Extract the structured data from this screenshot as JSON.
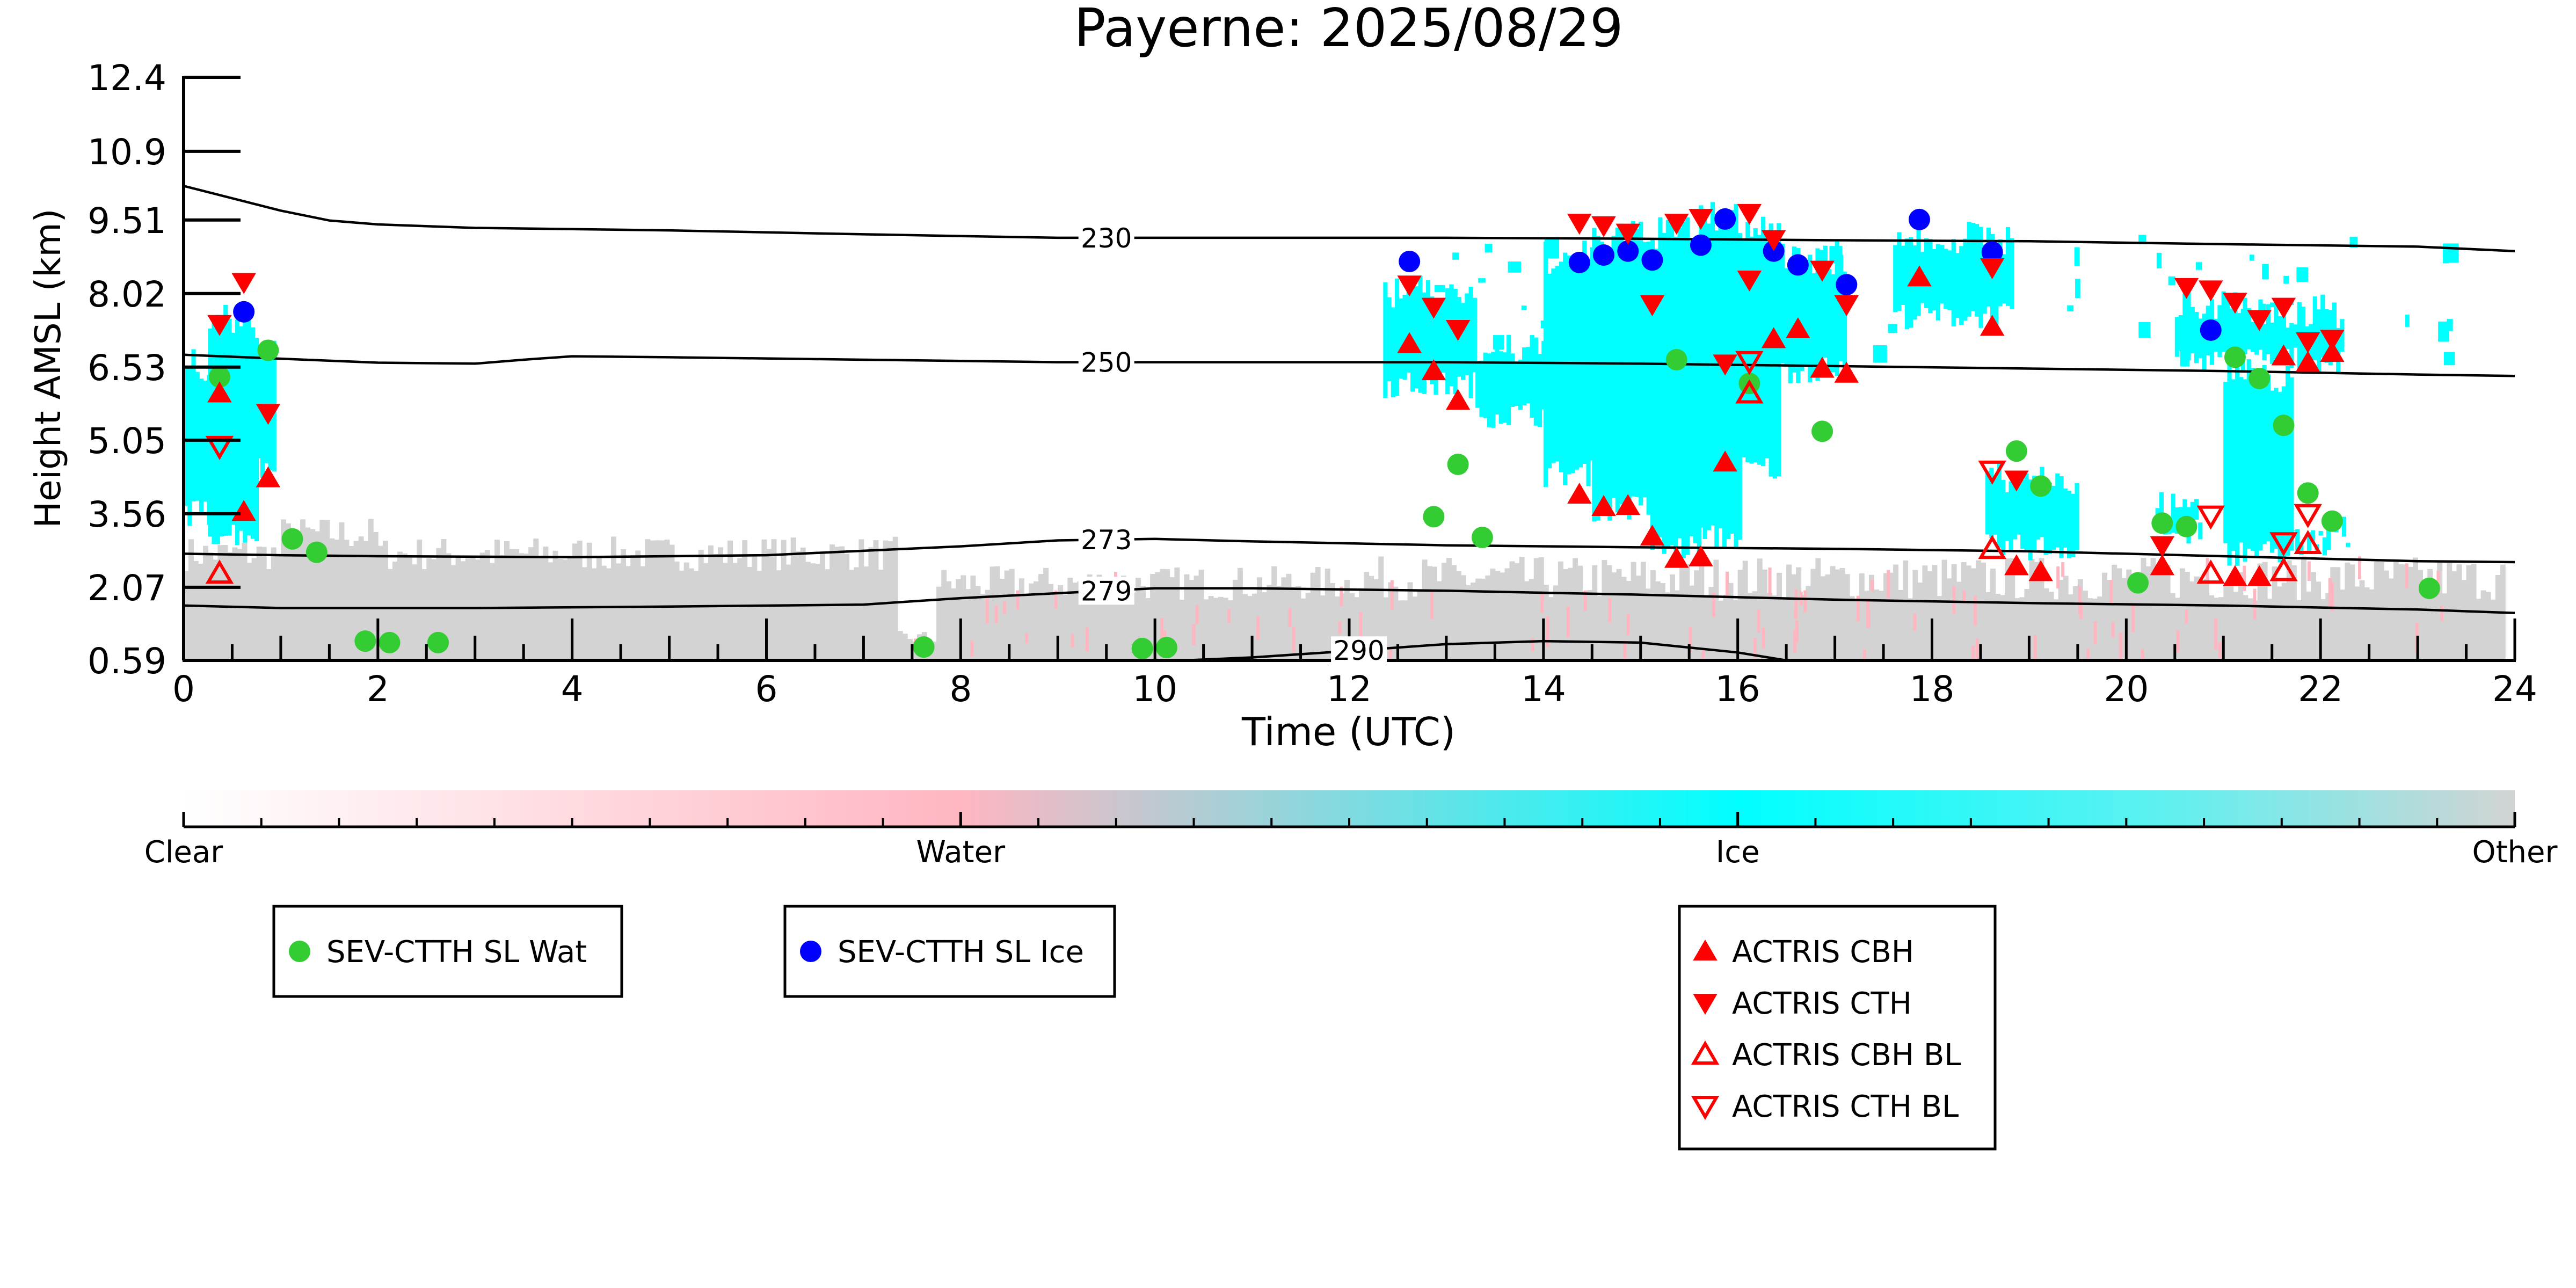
{
  "chart_data": {
    "type": "scatter",
    "title": "Payerne: 2025/08/29",
    "xlabel": "Time (UTC)",
    "ylabel": "Height AMSL (km)",
    "xlim": [
      0,
      24
    ],
    "ylim": [
      0.59,
      12.4
    ],
    "x_ticks": [
      "0",
      "2",
      "4",
      "6",
      "8",
      "10",
      "12",
      "14",
      "16",
      "18",
      "20",
      "22",
      "24"
    ],
    "y_ticks": [
      "0.59",
      "2.07",
      "3.56",
      "5.05",
      "6.53",
      "8.02",
      "9.51",
      "10.9",
      "12.4"
    ],
    "y_tick_values": [
      0.59,
      2.07,
      3.56,
      5.05,
      6.53,
      8.02,
      9.51,
      10.9,
      12.4
    ],
    "background": "cloud classification curtain (Clear / Water / Ice / Other)",
    "colorbar": {
      "labels": [
        "Clear",
        "Water",
        "Ice",
        "Other"
      ],
      "colors": [
        "#ffffff",
        "#ffb6c1",
        "#00ffff",
        "#d3d3d3"
      ]
    },
    "contours": [
      {
        "label": "230",
        "label_x": 9.5,
        "points": [
          [
            0,
            10.2
          ],
          [
            0.5,
            9.95
          ],
          [
            1,
            9.7
          ],
          [
            1.5,
            9.5
          ],
          [
            2,
            9.42
          ],
          [
            3,
            9.35
          ],
          [
            5,
            9.3
          ],
          [
            7,
            9.22
          ],
          [
            9,
            9.15
          ],
          [
            11,
            9.15
          ],
          [
            13,
            9.15
          ],
          [
            15,
            9.13
          ],
          [
            17,
            9.1
          ],
          [
            19,
            9.08
          ],
          [
            21,
            9.02
          ],
          [
            23,
            8.97
          ],
          [
            24,
            8.88
          ]
        ]
      },
      {
        "label": "250",
        "label_x": 9.5,
        "points": [
          [
            0,
            6.78
          ],
          [
            1,
            6.7
          ],
          [
            2,
            6.62
          ],
          [
            3,
            6.6
          ],
          [
            3.5,
            6.68
          ],
          [
            4,
            6.75
          ],
          [
            5,
            6.73
          ],
          [
            7,
            6.68
          ],
          [
            9,
            6.63
          ],
          [
            11,
            6.63
          ],
          [
            13,
            6.63
          ],
          [
            15,
            6.6
          ],
          [
            17,
            6.55
          ],
          [
            19,
            6.5
          ],
          [
            21,
            6.45
          ],
          [
            23,
            6.38
          ],
          [
            24,
            6.35
          ]
        ]
      },
      {
        "label": "273",
        "label_x": 9.5,
        "points": [
          [
            0,
            2.75
          ],
          [
            1,
            2.72
          ],
          [
            2,
            2.7
          ],
          [
            4,
            2.68
          ],
          [
            6,
            2.72
          ],
          [
            8,
            2.9
          ],
          [
            9,
            3.02
          ],
          [
            10,
            3.05
          ],
          [
            11,
            3.0
          ],
          [
            13,
            2.92
          ],
          [
            15,
            2.88
          ],
          [
            17,
            2.85
          ],
          [
            19,
            2.8
          ],
          [
            21,
            2.7
          ],
          [
            23,
            2.6
          ],
          [
            24,
            2.58
          ]
        ]
      },
      {
        "label": "279",
        "label_x": 9.5,
        "points": [
          [
            0,
            1.7
          ],
          [
            1,
            1.65
          ],
          [
            3,
            1.65
          ],
          [
            5,
            1.68
          ],
          [
            7,
            1.72
          ],
          [
            8,
            1.85
          ],
          [
            9,
            1.95
          ],
          [
            10,
            2.05
          ],
          [
            11,
            2.05
          ],
          [
            13,
            2.0
          ],
          [
            15,
            1.92
          ],
          [
            17,
            1.82
          ],
          [
            19,
            1.75
          ],
          [
            21,
            1.7
          ],
          [
            23,
            1.62
          ],
          [
            24,
            1.55
          ]
        ]
      },
      {
        "label": "290",
        "label_x": 12.1,
        "points": [
          [
            10.3,
            0.59
          ],
          [
            11,
            0.65
          ],
          [
            12,
            0.78
          ],
          [
            13,
            0.92
          ],
          [
            14,
            0.98
          ],
          [
            15,
            0.95
          ],
          [
            16,
            0.75
          ],
          [
            16.5,
            0.59
          ]
        ]
      }
    ],
    "series": [
      {
        "name": "SEV-CTTH SL Wat",
        "marker": "circle",
        "color": "#33cc33",
        "points": [
          [
            0.37,
            6.33
          ],
          [
            0.87,
            6.87
          ],
          [
            1.12,
            3.05
          ],
          [
            1.37,
            2.78
          ],
          [
            1.87,
            0.98
          ],
          [
            2.12,
            0.95
          ],
          [
            2.62,
            0.95
          ],
          [
            7.62,
            0.86
          ],
          [
            9.87,
            0.83
          ],
          [
            10.12,
            0.85
          ],
          [
            12.87,
            3.5
          ],
          [
            13.12,
            4.56
          ],
          [
            13.37,
            3.08
          ],
          [
            15.37,
            6.68
          ],
          [
            16.12,
            6.2
          ],
          [
            16.87,
            5.23
          ],
          [
            18.87,
            4.83
          ],
          [
            19.12,
            4.12
          ],
          [
            20.12,
            2.16
          ],
          [
            20.37,
            3.37
          ],
          [
            20.62,
            3.3
          ],
          [
            21.12,
            6.73
          ],
          [
            21.37,
            6.3
          ],
          [
            21.62,
            5.35
          ],
          [
            21.87,
            3.98
          ],
          [
            22.12,
            3.41
          ],
          [
            23.12,
            2.05
          ]
        ]
      },
      {
        "name": "SEV-CTTH SL Ice",
        "marker": "circle",
        "color": "#0000ff",
        "points": [
          [
            0.62,
            7.65
          ],
          [
            12.62,
            8.67
          ],
          [
            14.37,
            8.65
          ],
          [
            14.62,
            8.8
          ],
          [
            14.87,
            8.88
          ],
          [
            15.12,
            8.7
          ],
          [
            15.62,
            9.0
          ],
          [
            15.87,
            9.53
          ],
          [
            16.37,
            8.88
          ],
          [
            16.62,
            8.6
          ],
          [
            17.12,
            8.2
          ],
          [
            17.87,
            9.52
          ],
          [
            18.62,
            8.86
          ],
          [
            20.87,
            7.28
          ]
        ]
      },
      {
        "name": "ACTRIS CBH",
        "marker": "triangle-up",
        "color": "#ff0000",
        "filled": true,
        "points": [
          [
            0.37,
            6.0
          ],
          [
            0.62,
            3.6
          ],
          [
            0.87,
            4.28
          ],
          [
            12.62,
            7.0
          ],
          [
            12.87,
            6.45
          ],
          [
            13.12,
            5.85
          ],
          [
            14.37,
            3.95
          ],
          [
            14.62,
            3.7
          ],
          [
            14.87,
            3.72
          ],
          [
            15.12,
            3.1
          ],
          [
            15.37,
            2.65
          ],
          [
            15.62,
            2.68
          ],
          [
            15.87,
            4.6
          ],
          [
            16.37,
            7.1
          ],
          [
            16.62,
            7.3
          ],
          [
            16.87,
            6.5
          ],
          [
            17.12,
            6.4
          ],
          [
            17.87,
            8.35
          ],
          [
            18.62,
            7.35
          ],
          [
            18.87,
            2.5
          ],
          [
            19.12,
            2.38
          ],
          [
            20.37,
            2.5
          ],
          [
            21.12,
            2.28
          ],
          [
            21.37,
            2.28
          ],
          [
            21.62,
            6.75
          ],
          [
            21.87,
            6.62
          ],
          [
            22.12,
            6.82
          ]
        ]
      },
      {
        "name": "ACTRIS CTH",
        "marker": "triangle-down",
        "color": "#ff0000",
        "filled": true,
        "points": [
          [
            0.37,
            7.4
          ],
          [
            0.62,
            8.25
          ],
          [
            0.87,
            5.6
          ],
          [
            12.62,
            8.2
          ],
          [
            12.87,
            7.75
          ],
          [
            13.12,
            7.3
          ],
          [
            14.37,
            9.45
          ],
          [
            14.62,
            9.4
          ],
          [
            14.87,
            9.25
          ],
          [
            15.12,
            7.8
          ],
          [
            15.37,
            9.45
          ],
          [
            15.62,
            9.55
          ],
          [
            15.87,
            6.6
          ],
          [
            16.12,
            9.65
          ],
          [
            16.12,
            8.3
          ],
          [
            16.37,
            9.12
          ],
          [
            16.87,
            8.5
          ],
          [
            17.12,
            7.8
          ],
          [
            18.62,
            8.55
          ],
          [
            18.87,
            4.25
          ],
          [
            20.37,
            2.92
          ],
          [
            20.62,
            8.15
          ],
          [
            20.87,
            8.1
          ],
          [
            21.12,
            7.85
          ],
          [
            21.37,
            7.5
          ],
          [
            21.62,
            7.75
          ],
          [
            21.87,
            7.05
          ],
          [
            22.12,
            7.1
          ]
        ]
      },
      {
        "name": "ACTRIS CBH BL",
        "marker": "triangle-up",
        "color": "#ff0000",
        "filled": false,
        "points": [
          [
            0.37,
            2.35
          ],
          [
            16.12,
            6.0
          ],
          [
            18.62,
            2.85
          ],
          [
            20.87,
            2.35
          ],
          [
            21.62,
            2.4
          ],
          [
            21.87,
            2.95
          ]
        ]
      },
      {
        "name": "ACTRIS CTH BL",
        "marker": "triangle-down",
        "color": "#ff0000",
        "filled": false,
        "points": [
          [
            0.37,
            4.93
          ],
          [
            16.12,
            6.65
          ],
          [
            18.62,
            4.43
          ],
          [
            20.87,
            3.52
          ],
          [
            21.62,
            2.98
          ],
          [
            21.87,
            3.55
          ]
        ]
      }
    ],
    "legends": [
      {
        "entries": [
          "SEV-CTTH SL Wat"
        ]
      },
      {
        "entries": [
          "SEV-CTTH SL Ice"
        ]
      },
      {
        "entries": [
          "ACTRIS CBH",
          "ACTRIS CTH",
          "ACTRIS CBH BL",
          "ACTRIS CTH BL"
        ]
      }
    ]
  }
}
